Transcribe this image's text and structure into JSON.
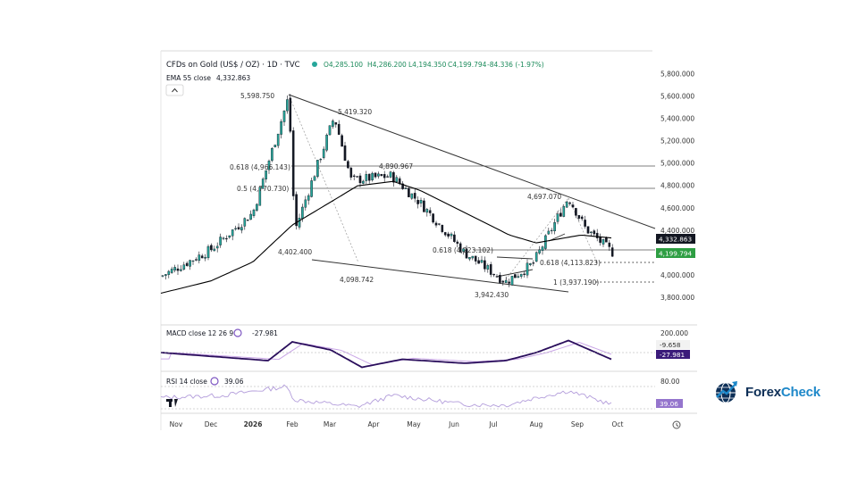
{
  "header": {
    "instrument": "CFDs on Gold (US$ / OZ) · 1D · TVC",
    "open": "O4,285.100",
    "high": "H4,286.200",
    "low": "L4,194.350",
    "close": "C4,199.794",
    "change": "-84.336 (-1.97%)",
    "ema_label": "EMA 55 close",
    "ema_value": "4,332.863"
  },
  "panes": {
    "macd": {
      "label": "MACD close 12 26 9",
      "value": "-27.981",
      "axis": "200.000",
      "badge_signal": "-9.658",
      "badge_macd": "-27.981"
    },
    "rsi": {
      "label": "RSI 14 close",
      "value": "39.06",
      "axis": "80.00",
      "badge": "39.06"
    }
  },
  "price_badges": {
    "ema": "4,332.863",
    "close": "4,199.794"
  },
  "annotations": {
    "peak": "5,598.750",
    "second_peak": "5,419.320",
    "fib618_high": "0.618 (4,966.143)",
    "fib5_high": "0.5 (4,770.730)",
    "level_4890": "4,890.967",
    "low_4402": "4,402.400",
    "low_4098": "4,098.742",
    "low_3942": "3,942.430",
    "fib618_low": "0.618 (4,223.102)",
    "peak_4697": "4,697.070",
    "ext_618": "0.618 (4,113.823)",
    "ext_1": "1 (3,937.190)"
  },
  "brand": {
    "part1": "Forex",
    "part2": "Check"
  },
  "colors": {
    "up": "#26a69a",
    "down": "#ef5350",
    "ema": "#000000",
    "macd": "#2a0e5c",
    "signal": "#c9a6e6",
    "rsi": "#b39ddb",
    "close_badge": "#2e9e43",
    "accent": "#1e88c9"
  },
  "chart_data": {
    "type": "line",
    "title": "CFDs on Gold (US$ / OZ) · 1D · TVC",
    "x_tick_labels": [
      "Nov",
      "Dec",
      "2026",
      "Feb",
      "Mar",
      "Apr",
      "May",
      "Jun",
      "Jul",
      "Aug",
      "Sep",
      "Oct"
    ],
    "y_tick_labels": [
      "5,800.000",
      "5,600.000",
      "5,400.000",
      "5,200.000",
      "5,000.000",
      "4,800.000",
      "4,600.000",
      "4,400.000",
      "4,200.000",
      "4,000.000",
      "3,800.000"
    ],
    "ylim": [
      3720,
      5870
    ],
    "grid": false,
    "series": [
      {
        "name": "CFDs on Gold (US$ / OZ)",
        "x": [
          "Nov",
          "Dec",
          "2026",
          "Feb",
          "Feb",
          "Mar",
          "Mar",
          "Apr",
          "May",
          "Jun",
          "Jul",
          "Aug",
          "Aug",
          "Sep",
          "Sep",
          "Oct"
        ],
        "values": [
          3990,
          4230,
          4560,
          5598.75,
          4402.4,
          5419.32,
          4850,
          4890.967,
          4650,
          4200,
          3942.43,
          4100,
          4697.07,
          4420,
          4300,
          4199.794
        ]
      },
      {
        "name": "EMA 55 close",
        "x": [
          "Nov",
          "Dec",
          "2026",
          "Feb",
          "Mar",
          "Apr",
          "May",
          "Jun",
          "Jul",
          "Aug",
          "Sep",
          "Oct"
        ],
        "values": [
          3840,
          3950,
          4120,
          4450,
          4800,
          4840,
          4760,
          4560,
          4360,
          4290,
          4360,
          4332.863
        ]
      }
    ]
  }
}
